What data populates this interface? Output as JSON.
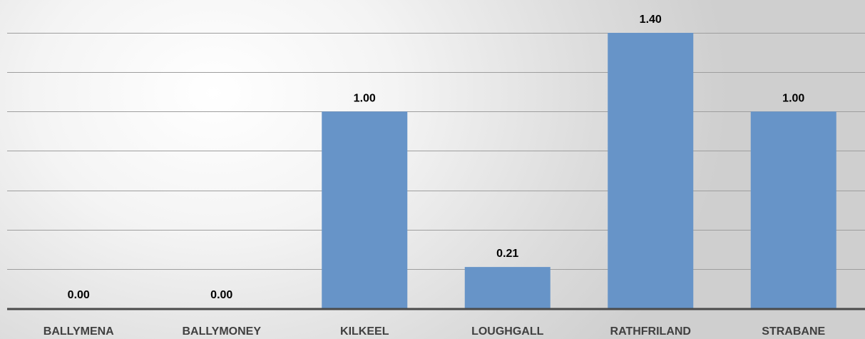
{
  "chart_data": {
    "type": "bar",
    "categories": [
      "BALLYMENA",
      "BALLYMONEY",
      "KILKEEL",
      "LOUGHGALL",
      "RATHFRILAND",
      "STRABANE"
    ],
    "values": [
      0.0,
      0.0,
      1.0,
      0.21,
      1.4,
      1.0
    ],
    "value_labels": [
      "0.00",
      "0.00",
      "1.00",
      "0.21",
      "1.40",
      "1.00"
    ],
    "title": "",
    "xlabel": "",
    "ylabel": "",
    "ylim": [
      0,
      1.5
    ],
    "grid": true,
    "legend": "none",
    "bar_color": "#6794c8",
    "gridline_color": "#9e9e9e",
    "axis_color": "#4a4a4a"
  }
}
